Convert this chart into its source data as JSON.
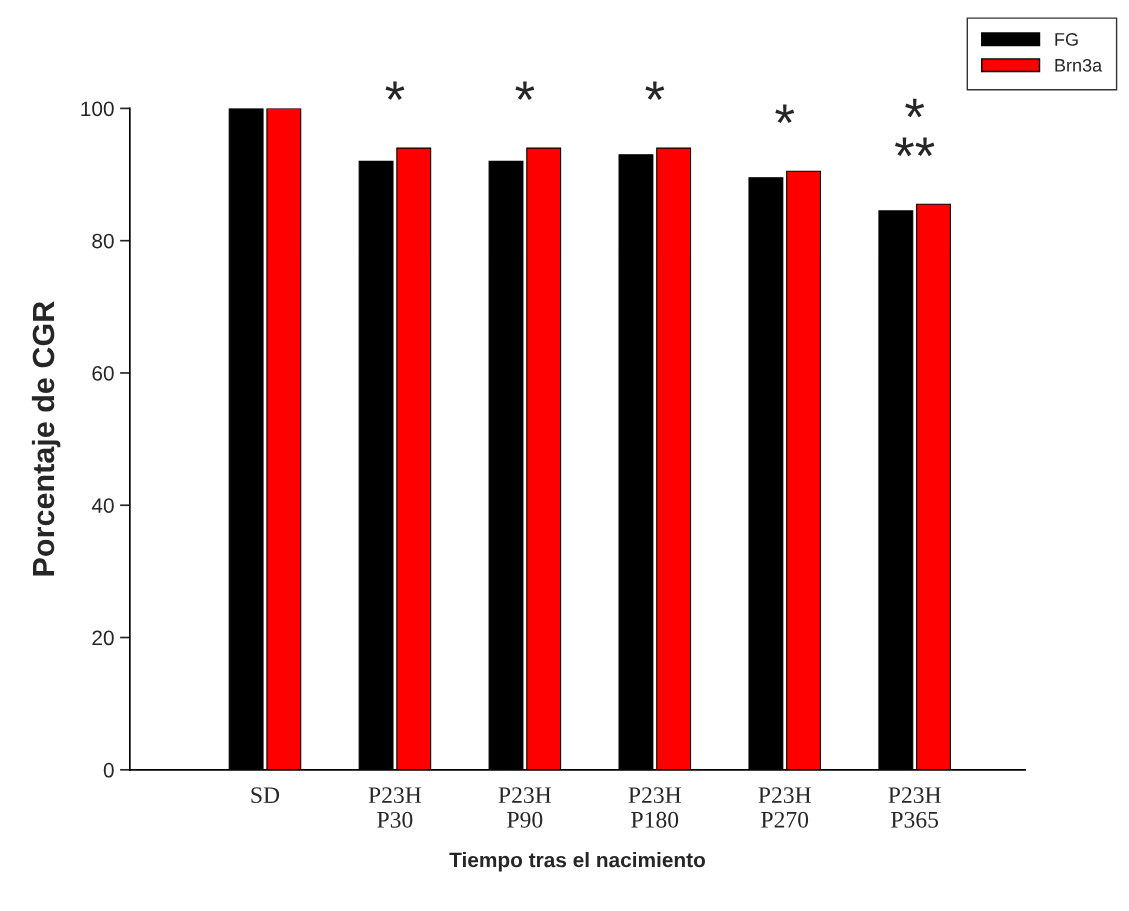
{
  "chart_data": {
    "type": "bar",
    "xlabel": "Tiempo tras el nacimiento",
    "ylabel": "Porcentaje de CGR",
    "categories": [
      "SD",
      "P23H\nP30",
      "P23H\nP90",
      "P23H\nP180",
      "P23H\nP270",
      "P23H\nP365"
    ],
    "series": [
      {
        "name": "FG",
        "color": "#000000",
        "values": [
          100,
          92,
          92,
          93,
          89.5,
          84.5
        ]
      },
      {
        "name": "Brn3a",
        "color": "#ff0000",
        "values": [
          100,
          94,
          94,
          94,
          90.5,
          85.5
        ]
      }
    ],
    "ylim": [
      0,
      100
    ],
    "yticks": [
      0,
      20,
      40,
      60,
      80,
      100
    ],
    "grid": false,
    "legend": "top right",
    "annotations": [
      {
        "text": "*",
        "x": "P23H\nP30",
        "y": 94
      },
      {
        "text": "*",
        "x": "P23H\nP90",
        "y": 94
      },
      {
        "text": "*",
        "x": "P23H\nP180",
        "y": 94
      },
      {
        "text": "*",
        "x": "P23H\nP270",
        "y": 90.5
      },
      {
        "text": "**",
        "x": "P23H\nP365",
        "y": 85.5
      },
      {
        "text": "*",
        "x": "P23H\nP365",
        "y": 85.5
      }
    ]
  }
}
